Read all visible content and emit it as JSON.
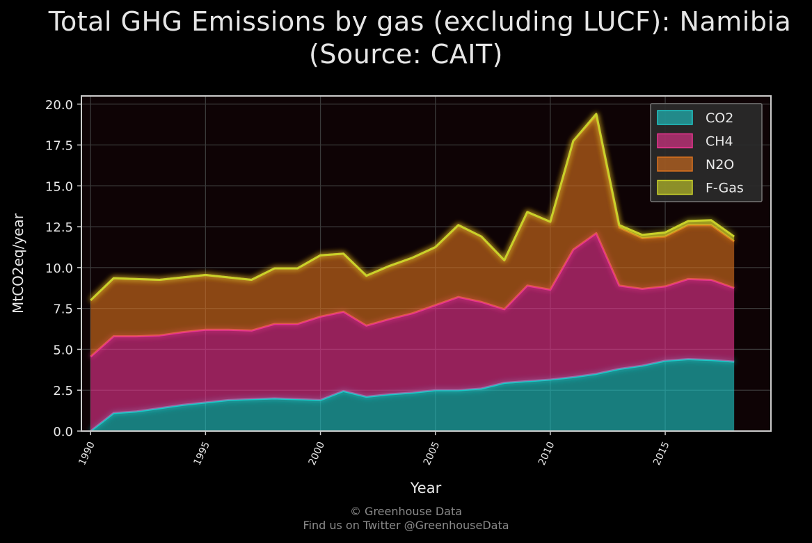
{
  "title": {
    "line1": "Total GHG Emissions by gas (excluding LUCF): Namibia",
    "line2": "(Source: CAIT)"
  },
  "footer": {
    "line1": "© Greenhouse Data",
    "line2": "Find us on Twitter @GreenhouseData"
  },
  "colors": {
    "background": "#000000",
    "plot_background": "#0e0305",
    "co2": "#1fc8c8",
    "ch4": "#e8348f",
    "n2o": "#d9711f",
    "fgas": "#c9d12a",
    "axis": "#cccccc",
    "grid": "#3a3a3a"
  },
  "chart_data": {
    "type": "area",
    "stacked": true,
    "title": "Total GHG Emissions by gas (excluding LUCF): Namibia (Source: CAIT)",
    "xlabel": "Year",
    "ylabel": "MtCO2eq/year",
    "xlim": [
      1989.6,
      2019.6
    ],
    "ylim": [
      0,
      20.5
    ],
    "xticks": [
      1990,
      1995,
      2000,
      2005,
      2010,
      2015
    ],
    "yticks": [
      0.0,
      2.5,
      5.0,
      7.5,
      10.0,
      12.5,
      15.0,
      17.5,
      20.0
    ],
    "ytick_labels": [
      "0.0",
      "2.5",
      "5.0",
      "7.5",
      "10.0",
      "12.5",
      "15.0",
      "17.5",
      "20.0"
    ],
    "grid": true,
    "legend_position": "top-right",
    "x": [
      1990,
      1991,
      1992,
      1993,
      1994,
      1995,
      1996,
      1997,
      1998,
      1999,
      2000,
      2001,
      2002,
      2003,
      2004,
      2005,
      2006,
      2007,
      2008,
      2009,
      2010,
      2011,
      2012,
      2013,
      2014,
      2015,
      2016,
      2017,
      2018
    ],
    "series": [
      {
        "name": "CO2",
        "values": [
          0.0,
          1.1,
          1.2,
          1.4,
          1.6,
          1.75,
          1.9,
          1.95,
          2.0,
          1.95,
          1.9,
          2.45,
          2.1,
          2.25,
          2.35,
          2.5,
          2.5,
          2.6,
          2.95,
          3.05,
          3.15,
          3.3,
          3.5,
          3.8,
          4.0,
          4.3,
          4.4,
          4.35,
          4.25
        ]
      },
      {
        "name": "CH4",
        "values": [
          4.55,
          4.7,
          4.6,
          4.45,
          4.45,
          4.45,
          4.3,
          4.2,
          4.55,
          4.6,
          5.1,
          4.85,
          4.35,
          4.6,
          4.85,
          5.2,
          5.7,
          5.3,
          4.5,
          5.85,
          5.5,
          7.8,
          8.6,
          5.1,
          4.7,
          4.55,
          4.9,
          4.9,
          4.5
        ]
      },
      {
        "name": "N2O",
        "values": [
          3.45,
          3.55,
          3.5,
          3.4,
          3.35,
          3.35,
          3.2,
          3.1,
          3.4,
          3.4,
          3.75,
          3.55,
          3.05,
          3.25,
          3.4,
          3.55,
          4.4,
          4.0,
          3.0,
          4.5,
          4.15,
          6.65,
          7.2,
          3.55,
          3.1,
          3.05,
          3.3,
          3.35,
          2.85
        ]
      },
      {
        "name": "F-Gas",
        "values": [
          0.0,
          0.0,
          0.0,
          0.0,
          0.0,
          0.0,
          0.0,
          0.0,
          0.0,
          0.0,
          0.0,
          0.0,
          0.0,
          0.0,
          0.0,
          0.0,
          0.0,
          0.0,
          0.0,
          0.0,
          0.0,
          0.0,
          0.1,
          0.15,
          0.2,
          0.25,
          0.25,
          0.3,
          0.3
        ]
      }
    ]
  }
}
